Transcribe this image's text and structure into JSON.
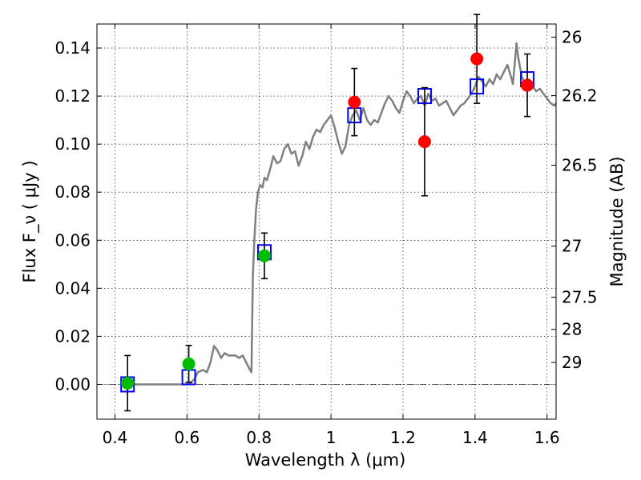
{
  "chart_data": {
    "type": "scatter",
    "xlabel": "Wavelength  λ (μm)",
    "ylabel": "Flux  F_ν  ( μJy )",
    "y2label": "Magnitude (AB)",
    "xlim": [
      0.35,
      1.625
    ],
    "ylim": [
      -0.0145,
      0.15
    ],
    "grid": true,
    "x_ticks": [
      {
        "value": 0.4,
        "label": "0.4"
      },
      {
        "value": 0.6,
        "label": "0.6"
      },
      {
        "value": 0.8,
        "label": "0.8"
      },
      {
        "value": 1.0,
        "label": "1"
      },
      {
        "value": 1.2,
        "label": "1.2"
      },
      {
        "value": 1.4,
        "label": "1.4"
      },
      {
        "value": 1.6,
        "label": "1.6"
      }
    ],
    "y_ticks": [
      {
        "value": 0.0,
        "label": "0.00"
      },
      {
        "value": 0.02,
        "label": "0.02"
      },
      {
        "value": 0.04,
        "label": "0.04"
      },
      {
        "value": 0.06,
        "label": "0.06"
      },
      {
        "value": 0.08,
        "label": "0.08"
      },
      {
        "value": 0.1,
        "label": "0.10"
      },
      {
        "value": 0.12,
        "label": "0.12"
      },
      {
        "value": 0.14,
        "label": "0.14"
      }
    ],
    "y2_ticks": [
      {
        "mag": 26,
        "label": "26"
      },
      {
        "mag": 26.2,
        "label": "26.2"
      },
      {
        "mag": 26.5,
        "label": "26.5"
      },
      {
        "mag": 27,
        "label": "27"
      },
      {
        "mag": 27.5,
        "label": "27.5"
      },
      {
        "mag": 28,
        "label": "28"
      },
      {
        "mag": 29,
        "label": "29"
      }
    ],
    "series": [
      {
        "kind": "line",
        "color": "#808080",
        "points": [
          [
            0.43,
            0.0
          ],
          [
            0.55,
            0.0
          ],
          [
            0.605,
            0.0
          ],
          [
            0.62,
            0.002
          ],
          [
            0.63,
            0.005
          ],
          [
            0.645,
            0.006
          ],
          [
            0.655,
            0.005
          ],
          [
            0.665,
            0.009
          ],
          [
            0.675,
            0.016
          ],
          [
            0.685,
            0.014
          ],
          [
            0.695,
            0.011
          ],
          [
            0.705,
            0.013
          ],
          [
            0.715,
            0.012
          ],
          [
            0.725,
            0.012
          ],
          [
            0.735,
            0.012
          ],
          [
            0.745,
            0.011
          ],
          [
            0.755,
            0.012
          ],
          [
            0.765,
            0.009
          ],
          [
            0.775,
            0.006
          ],
          [
            0.779,
            0.005
          ],
          [
            0.783,
            0.045
          ],
          [
            0.787,
            0.06
          ],
          [
            0.792,
            0.073
          ],
          [
            0.797,
            0.08
          ],
          [
            0.803,
            0.083
          ],
          [
            0.81,
            0.082
          ],
          [
            0.815,
            0.086
          ],
          [
            0.822,
            0.085
          ],
          [
            0.83,
            0.089
          ],
          [
            0.84,
            0.095
          ],
          [
            0.85,
            0.092
          ],
          [
            0.86,
            0.093
          ],
          [
            0.87,
            0.098
          ],
          [
            0.88,
            0.1
          ],
          [
            0.89,
            0.096
          ],
          [
            0.9,
            0.097
          ],
          [
            0.91,
            0.091
          ],
          [
            0.92,
            0.095
          ],
          [
            0.93,
            0.101
          ],
          [
            0.94,
            0.098
          ],
          [
            0.95,
            0.103
          ],
          [
            0.96,
            0.106
          ],
          [
            0.97,
            0.105
          ],
          [
            0.98,
            0.108
          ],
          [
            0.99,
            0.11
          ],
          [
            1.0,
            0.112
          ],
          [
            1.01,
            0.107
          ],
          [
            1.02,
            0.101
          ],
          [
            1.03,
            0.096
          ],
          [
            1.04,
            0.099
          ],
          [
            1.05,
            0.108
          ],
          [
            1.06,
            0.112
          ],
          [
            1.07,
            0.114
          ],
          [
            1.08,
            0.11
          ],
          [
            1.09,
            0.115
          ],
          [
            1.1,
            0.11
          ],
          [
            1.11,
            0.108
          ],
          [
            1.12,
            0.11
          ],
          [
            1.13,
            0.109
          ],
          [
            1.14,
            0.113
          ],
          [
            1.15,
            0.117
          ],
          [
            1.16,
            0.12
          ],
          [
            1.17,
            0.118
          ],
          [
            1.18,
            0.115
          ],
          [
            1.19,
            0.113
          ],
          [
            1.2,
            0.118
          ],
          [
            1.21,
            0.122
          ],
          [
            1.22,
            0.12
          ],
          [
            1.23,
            0.117
          ],
          [
            1.24,
            0.119
          ],
          [
            1.25,
            0.12
          ],
          [
            1.26,
            0.116
          ],
          [
            1.27,
            0.121
          ],
          [
            1.28,
            0.118
          ],
          [
            1.29,
            0.119
          ],
          [
            1.3,
            0.116
          ],
          [
            1.31,
            0.117
          ],
          [
            1.32,
            0.118
          ],
          [
            1.33,
            0.115
          ],
          [
            1.34,
            0.112
          ],
          [
            1.35,
            0.114
          ],
          [
            1.36,
            0.116
          ],
          [
            1.37,
            0.117
          ],
          [
            1.38,
            0.119
          ],
          [
            1.39,
            0.121
          ],
          [
            1.4,
            0.124
          ],
          [
            1.41,
            0.128
          ],
          [
            1.42,
            0.126
          ],
          [
            1.43,
            0.124
          ],
          [
            1.44,
            0.127
          ],
          [
            1.45,
            0.125
          ],
          [
            1.46,
            0.129
          ],
          [
            1.47,
            0.127
          ],
          [
            1.48,
            0.13
          ],
          [
            1.49,
            0.133
          ],
          [
            1.5,
            0.128
          ],
          [
            1.505,
            0.125
          ],
          [
            1.51,
            0.133
          ],
          [
            1.515,
            0.142
          ],
          [
            1.52,
            0.136
          ],
          [
            1.53,
            0.128
          ],
          [
            1.54,
            0.125
          ],
          [
            1.55,
            0.127
          ],
          [
            1.56,
            0.124
          ],
          [
            1.57,
            0.122
          ],
          [
            1.58,
            0.123
          ],
          [
            1.59,
            0.121
          ],
          [
            1.6,
            0.119
          ],
          [
            1.61,
            0.117
          ],
          [
            1.62,
            0.116
          ],
          [
            1.625,
            0.117
          ]
        ]
      },
      {
        "kind": "square",
        "color": "#0000ff",
        "points": [
          [
            0.435,
            0.0
          ],
          [
            0.605,
            0.003
          ],
          [
            0.815,
            0.055
          ],
          [
            1.065,
            0.112
          ],
          [
            1.26,
            0.12
          ],
          [
            1.405,
            0.124
          ],
          [
            1.545,
            0.127
          ]
        ]
      },
      {
        "kind": "circle",
        "color": "#00bb00",
        "points": [
          {
            "x": 0.435,
            "y": 0.0005,
            "err": 0.0115
          },
          {
            "x": 0.605,
            "y": 0.0085,
            "err": 0.0077
          },
          {
            "x": 0.815,
            "y": 0.0535,
            "err": 0.0095
          }
        ]
      },
      {
        "kind": "circle",
        "color": "#ff0000",
        "points": [
          {
            "x": 1.065,
            "y": 0.1175,
            "err": 0.014
          },
          {
            "x": 1.26,
            "y": 0.101,
            "err": 0.0225
          },
          {
            "x": 1.405,
            "y": 0.1355,
            "err": 0.0185
          },
          {
            "x": 1.545,
            "y": 0.1245,
            "err": 0.013
          }
        ]
      }
    ]
  }
}
